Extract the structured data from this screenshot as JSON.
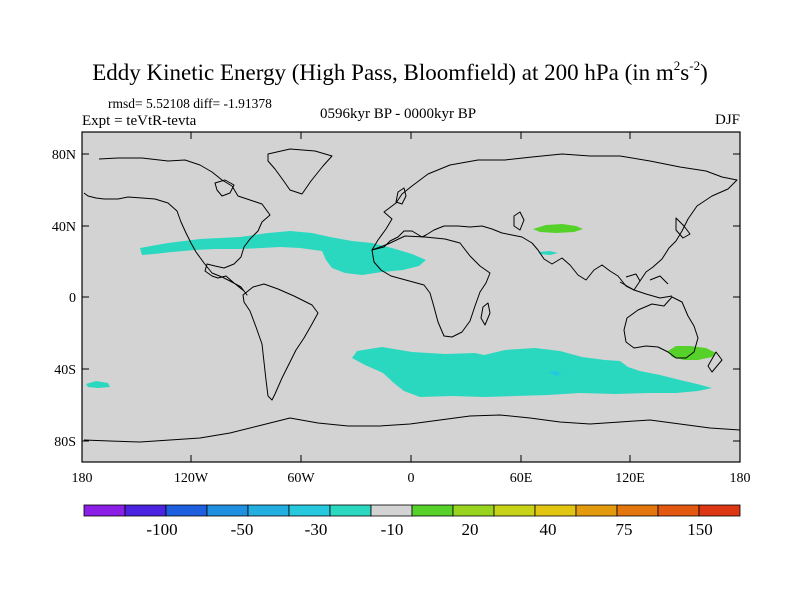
{
  "title": {
    "main": "Eddy Kinetic Energy (High Pass, Bloomfield) at 200 hPa (in m",
    "sup1": "2",
    "mid": "s",
    "sup2": "-2",
    "end": ")"
  },
  "stats": "rmsd= 5.52108 diff= -1.91378",
  "experiment": "Expt = teVtR-tevta",
  "period": "0596kyr BP - 0000kyr BP",
  "season": "DJF",
  "axes": {
    "lat_labels": [
      "80N",
      "40N",
      "0",
      "40S",
      "80S"
    ],
    "lon_labels": [
      "180",
      "120W",
      "60W",
      "0",
      "60E",
      "120E",
      "180"
    ]
  },
  "colorbar": {
    "colors": [
      "#8c1fe6",
      "#4a24e0",
      "#1e5fe0",
      "#1f8fe0",
      "#22aee0",
      "#25c8dc",
      "#2ad8c0",
      "#d3d3d3",
      "#55d12a",
      "#98d41e",
      "#c8d216",
      "#e2c511",
      "#e39a0d",
      "#e3760c",
      "#e25810",
      "#dd3612"
    ],
    "labels": [
      "-100",
      "-50",
      "-30",
      "-10",
      "20",
      "40",
      "75",
      "150"
    ]
  },
  "colors": {
    "land_ocean": "#d3d3d3",
    "neg_small": "#2ad8c0",
    "pos_small": "#55d12a",
    "deeper": "#25c8dc"
  }
}
